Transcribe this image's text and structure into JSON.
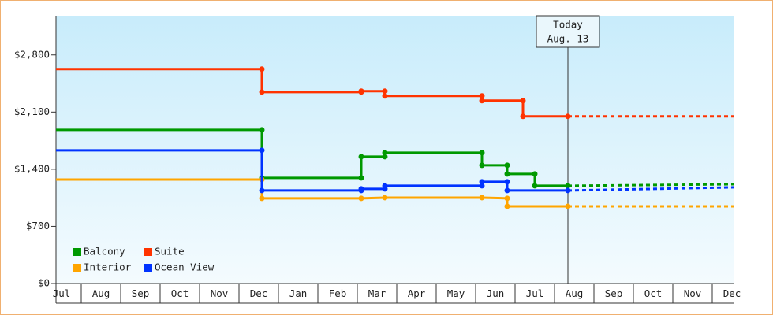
{
  "chart_data": {
    "type": "line",
    "xlim": [
      0.36,
      17.56
    ],
    "xticks": [
      {
        "value": 0.5,
        "label": "Jul"
      },
      {
        "value": 1.5,
        "label": "Aug"
      },
      {
        "value": 2.5,
        "label": "Sep"
      },
      {
        "value": 3.5,
        "label": "Oct"
      },
      {
        "value": 4.5,
        "label": "Nov"
      },
      {
        "value": 5.5,
        "label": "Dec"
      },
      {
        "value": 6.5,
        "label": "Jan"
      },
      {
        "value": 7.5,
        "label": "Feb"
      },
      {
        "value": 8.5,
        "label": "Mar"
      },
      {
        "value": 9.5,
        "label": "Apr"
      },
      {
        "value": 10.5,
        "label": "May"
      },
      {
        "value": 11.5,
        "label": "Jun"
      },
      {
        "value": 12.5,
        "label": "Jul"
      },
      {
        "value": 13.5,
        "label": "Aug"
      },
      {
        "value": 14.5,
        "label": "Sep"
      },
      {
        "value": 15.5,
        "label": "Oct"
      },
      {
        "value": 16.5,
        "label": "Nov"
      },
      {
        "value": 17.5,
        "label": "Dec"
      }
    ],
    "ylim": [
      0,
      3280
    ],
    "yticks": [
      {
        "value": 0,
        "label": "$0"
      },
      {
        "value": 700,
        "label": "$700"
      },
      {
        "value": 1400,
        "label": "$1,400"
      },
      {
        "value": 2100,
        "label": "$2,100"
      },
      {
        "value": 2800,
        "label": "$2,800"
      }
    ],
    "annotation": {
      "x": 13.34,
      "lines": [
        "Today",
        "Aug. 13"
      ]
    },
    "series": [
      {
        "name": "Balcony",
        "color": "#009900",
        "x": [
          0.36,
          5.58,
          5.58,
          8.1,
          8.1,
          8.7,
          8.7,
          11.16,
          11.16,
          11.8,
          11.8,
          12.5,
          12.5,
          13.34
        ],
        "values": [
          1882,
          1882,
          1294,
          1294,
          1554,
          1554,
          1603,
          1603,
          1448,
          1448,
          1342,
          1342,
          1197,
          1197
        ],
        "forecast": 1216
      },
      {
        "name": "Suite",
        "color": "#ff3300",
        "x": [
          0.36,
          5.58,
          5.58,
          8.1,
          8.1,
          8.7,
          8.7,
          11.16,
          11.16,
          12.2,
          12.2,
          13.34
        ],
        "values": [
          2626,
          2626,
          2346,
          2346,
          2356,
          2356,
          2298,
          2298,
          2240,
          2240,
          2047,
          2047
        ],
        "forecast": 2047
      },
      {
        "name": "Interior",
        "color": "#ffa500",
        "x": [
          0.36,
          5.58,
          5.58,
          8.1,
          8.7,
          11.16,
          11.8,
          11.8,
          13.34
        ],
        "values": [
          1274,
          1274,
          1043,
          1043,
          1052,
          1052,
          1043,
          946,
          946
        ],
        "forecast": 946
      },
      {
        "name": "Ocean View",
        "color": "#0033ff",
        "x": [
          0.36,
          5.58,
          5.58,
          8.1,
          8.1,
          8.7,
          8.7,
          11.16,
          11.16,
          11.8,
          11.8,
          13.34
        ],
        "values": [
          1632,
          1632,
          1139,
          1139,
          1159,
          1159,
          1197,
          1197,
          1246,
          1246,
          1139,
          1139
        ],
        "forecast": 1178
      }
    ]
  }
}
